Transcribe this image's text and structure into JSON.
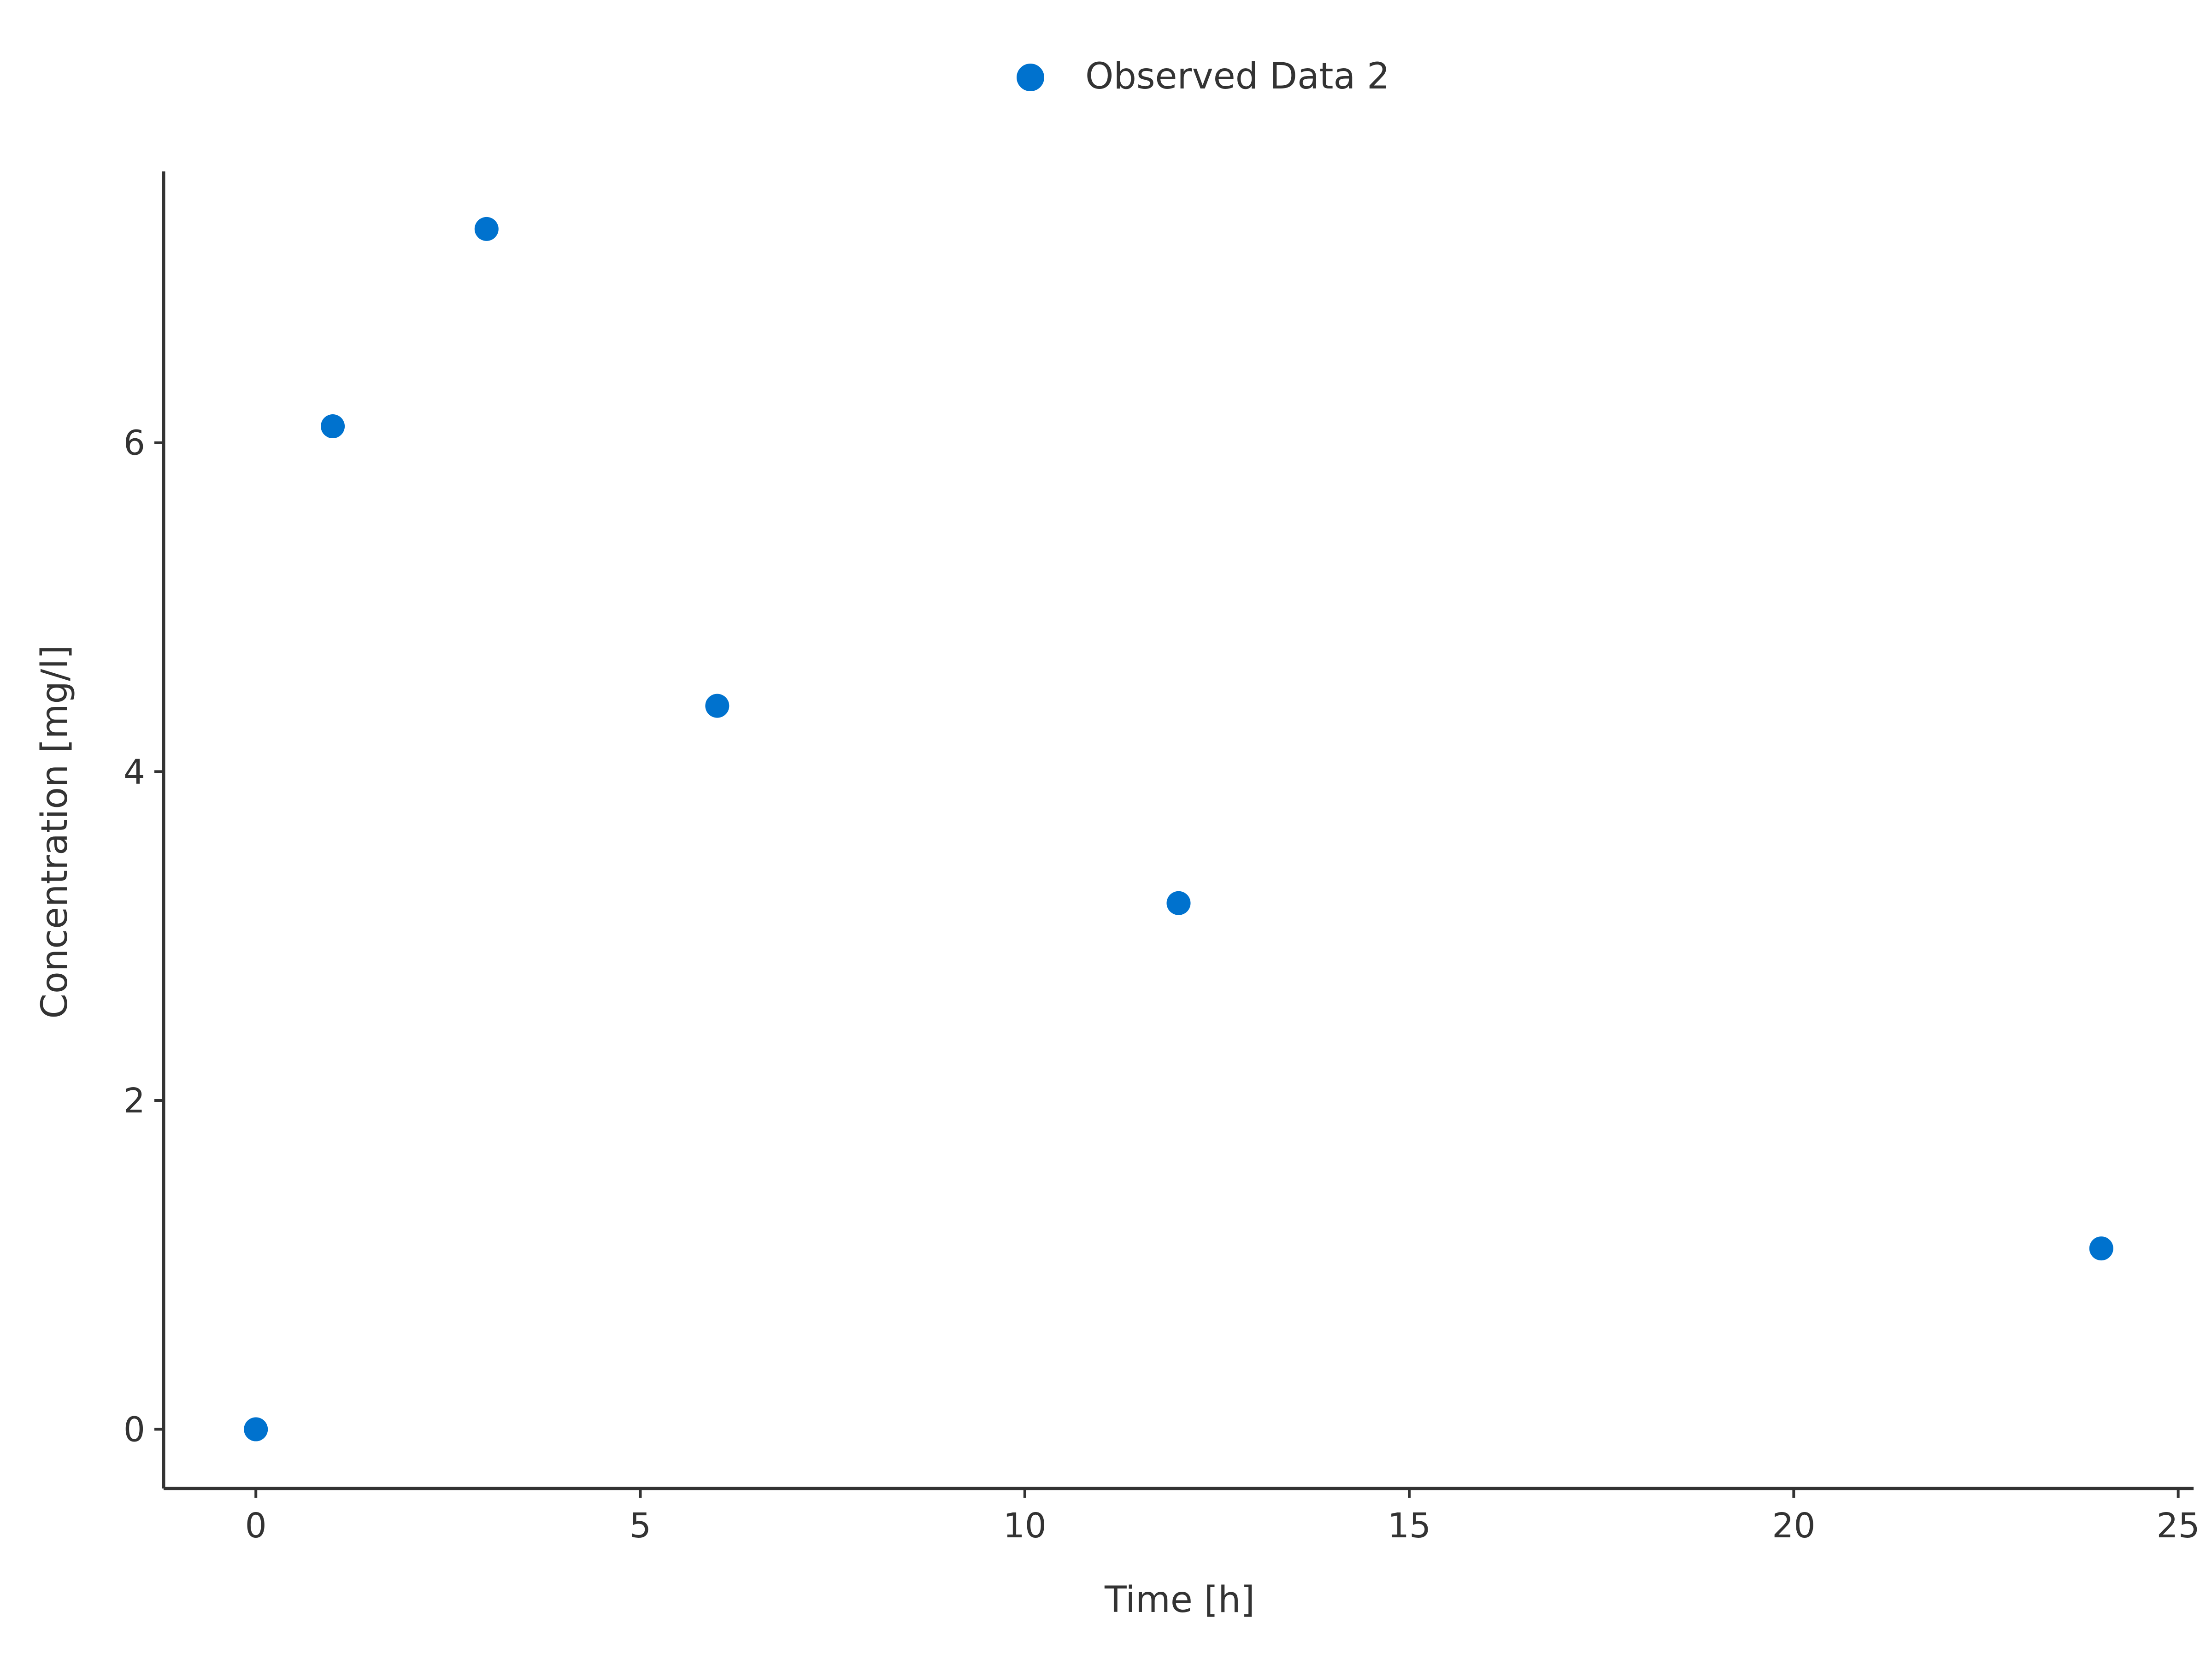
{
  "chart_data": {
    "type": "scatter",
    "title": "",
    "xlabel": "Time [h]",
    "ylabel": "Concentration [mg/l]",
    "xlim": [
      -1.2,
      25.2
    ],
    "ylim": [
      -0.36,
      7.65
    ],
    "xticks": [
      0,
      5,
      10,
      15,
      20,
      25
    ],
    "yticks": [
      0,
      2,
      4,
      6
    ],
    "grid": false,
    "legend_position": "top-center",
    "series": [
      {
        "name": "Observed Data 2",
        "color": "#0072CE",
        "marker": "circle",
        "x": [
          0,
          1,
          3,
          6,
          12,
          24
        ],
        "y": [
          0,
          6.1,
          7.3,
          4.4,
          3.2,
          1.1
        ]
      }
    ]
  },
  "colors": {
    "axis": "#333333",
    "text": "#333333",
    "background": "#ffffff"
  }
}
